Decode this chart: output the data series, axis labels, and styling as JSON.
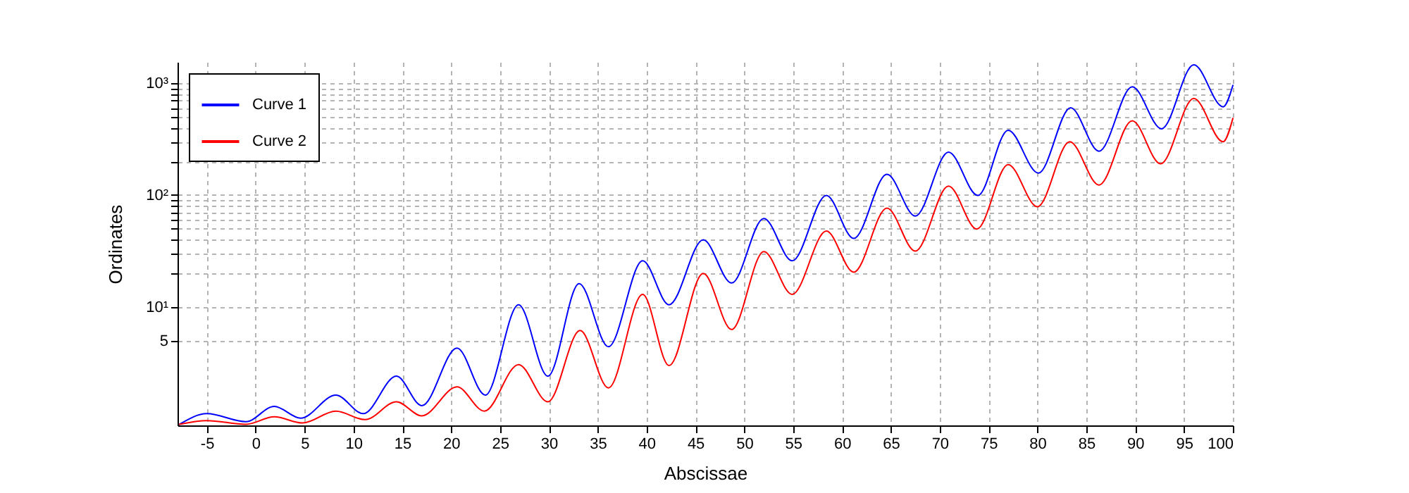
{
  "chart_data": {
    "type": "line",
    "xlabel": "Abscissae",
    "ylabel": "Ordinates",
    "log": "y",
    "grid": true,
    "legend": "top left",
    "xlim": [
      -8,
      100
    ],
    "xticks": [
      -5,
      0,
      5,
      10,
      15,
      20,
      25,
      30,
      35,
      40,
      45,
      50,
      55,
      60,
      65,
      70,
      75,
      80,
      85,
      90,
      95,
      100
    ],
    "ylim": [
      0.88,
      1540
    ],
    "yticks": [
      5,
      {
        "value": 10,
        "label": "10¹"
      },
      {
        "value": 20,
        "label": null
      },
      {
        "value": 30,
        "label": null
      },
      {
        "value": 40,
        "label": null
      },
      {
        "value": 50,
        "label": null
      },
      {
        "value": 60,
        "label": null
      },
      {
        "value": 70,
        "label": null
      },
      {
        "value": 80,
        "label": null
      },
      {
        "value": 90,
        "label": null
      },
      {
        "value": 100,
        "label": "10²"
      },
      {
        "value": 200,
        "label": null
      },
      {
        "value": 300,
        "label": null
      },
      {
        "value": 400,
        "label": null
      },
      {
        "value": 500,
        "label": null
      },
      {
        "value": 600,
        "label": null
      },
      {
        "value": 700,
        "label": null
      },
      {
        "value": 800,
        "label": null
      },
      {
        "value": 900,
        "label": null
      },
      {
        "value": 1000,
        "label": "10³"
      }
    ],
    "series": [
      {
        "name": "Curve 1",
        "color": "#0000ff",
        "x": [
          -7.8,
          -5,
          -1,
          1.9,
          4.6,
          8.2,
          11.0,
          14.4,
          17.0,
          20.6,
          23.5,
          26.9,
          29.9,
          33.1,
          36.1,
          39.6,
          42.3,
          45.8,
          48.7,
          52,
          54.9,
          58.4,
          61.2,
          64.6,
          67.5,
          70.9,
          73.9,
          77.0,
          80.1,
          83.4,
          86.3,
          89.7,
          92.7,
          96.0,
          99.0,
          100
        ],
        "values": [
          0.9,
          1.12,
          0.95,
          1.3,
          1.02,
          1.64,
          1.12,
          2.42,
          1.32,
          4.31,
          1.64,
          10.5,
          2.42,
          16.2,
          4.43,
          25.9,
          10.5,
          39.8,
          16.4,
          61.8,
          25.9,
          99.2,
          41.0,
          153,
          64.9,
          242,
          99.2,
          379,
          157,
          601,
          246,
          925,
          390,
          1454,
          613,
          952
        ]
      },
      {
        "name": "Curve 2",
        "color": "#ff0000",
        "x": [
          -7.8,
          -5,
          -1,
          1.9,
          4.8,
          8.2,
          11.2,
          14.4,
          17.0,
          20.6,
          23.4,
          26.9,
          29.9,
          33.2,
          36.1,
          39.6,
          42.3,
          45.8,
          48.7,
          52,
          54.9,
          58.4,
          61.2,
          64.6,
          67.5,
          70.9,
          73.8,
          77.0,
          80.0,
          83.3,
          86.3,
          89.7,
          92.6,
          96,
          99,
          100
        ],
        "values": [
          0.9,
          0.97,
          0.9,
          1.05,
          0.925,
          1.18,
          0.99,
          1.43,
          1.07,
          1.94,
          1.18,
          3.07,
          1.43,
          6.18,
          1.9,
          13.0,
          3.01,
          20.0,
          6.31,
          31.3,
          13.0,
          47.7,
          20.5,
          76.5,
          31.6,
          120,
          49.7,
          187,
          78.7,
          299,
          123,
          460,
          190,
          729,
          299,
          483
        ]
      }
    ]
  }
}
